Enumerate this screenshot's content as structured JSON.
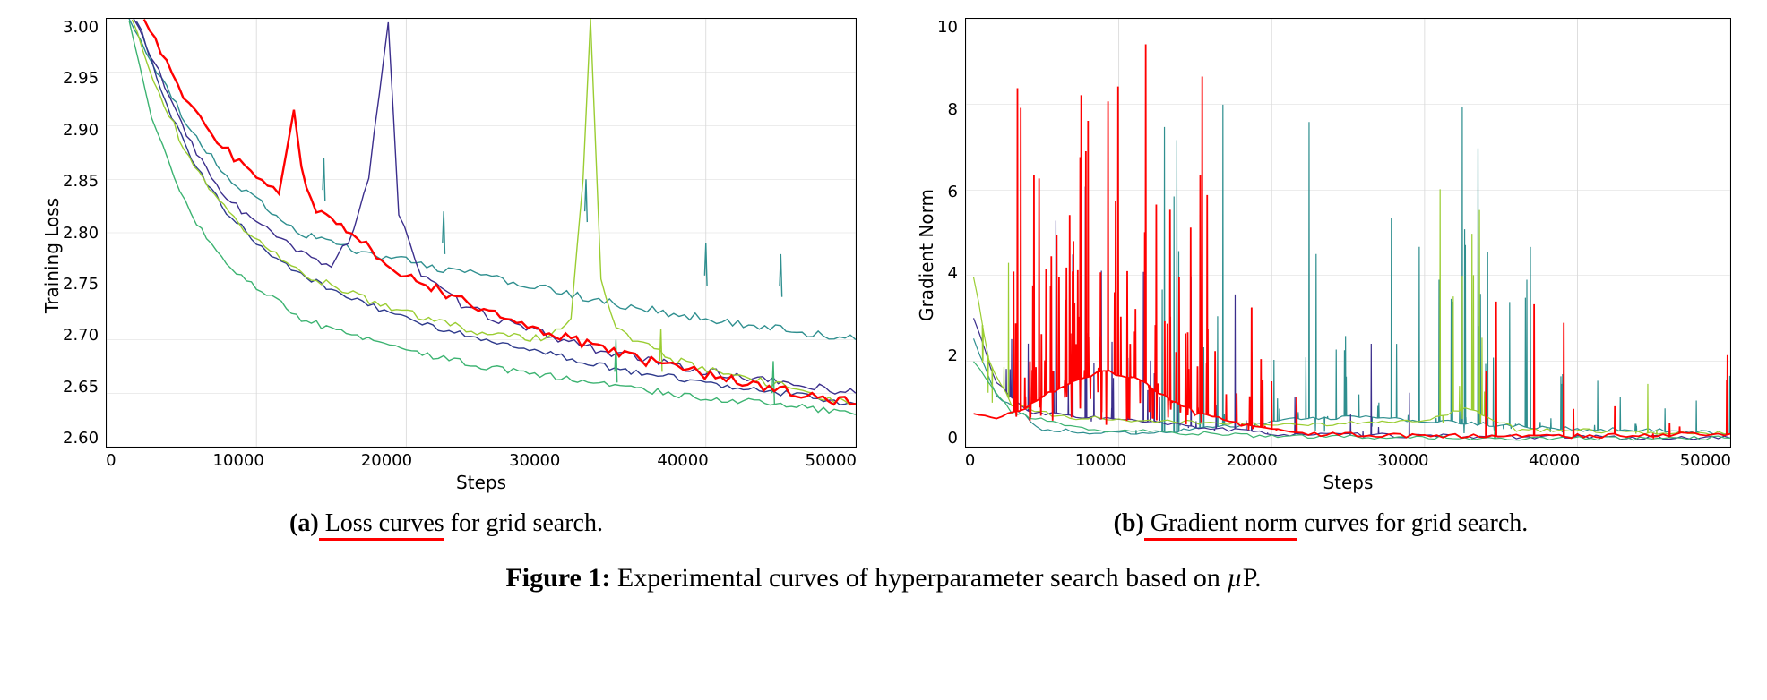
{
  "colors": {
    "background": "#ffffff",
    "text": "#000000",
    "grid": "#d9d9d9",
    "underline": "#ff0000",
    "axis": "#000000"
  },
  "figure_caption": {
    "tag": "Figure 1:",
    "text_before_mu": " Experimental curves of hyperparameter search based on ",
    "mu": "µ",
    "text_after_mu": "P."
  },
  "panel_a": {
    "subcaption_tag": "(a)",
    "subcaption_underlined": " Loss curves",
    "subcaption_rest": " for grid search.",
    "ylabel": "Training Loss",
    "xlabel": "Steps",
    "xlim": [
      0,
      50000
    ],
    "ylim": [
      2.6,
      3.0
    ],
    "xticks": [
      0,
      10000,
      20000,
      30000,
      40000,
      50000
    ],
    "xtick_labels": [
      "0",
      "10000",
      "20000",
      "30000",
      "40000",
      "50000"
    ],
    "yticks": [
      2.6,
      2.65,
      2.7,
      2.75,
      2.8,
      2.85,
      2.9,
      2.95,
      3.0
    ],
    "ytick_labels": [
      "2.60",
      "2.65",
      "2.70",
      "2.75",
      "2.80",
      "2.85",
      "2.90",
      "2.95",
      "3.00"
    ],
    "tick_fontsize": 18,
    "label_fontsize": 20,
    "line_width": 1.4,
    "red_line_width": 2.4,
    "grid": true,
    "series": [
      {
        "color": "#2f8f8f",
        "noise": 0.004,
        "points": [
          [
            1500,
            3.0
          ],
          [
            3000,
            2.96
          ],
          [
            5000,
            2.91
          ],
          [
            7000,
            2.87
          ],
          [
            9000,
            2.84
          ],
          [
            11000,
            2.82
          ],
          [
            13000,
            2.8
          ],
          [
            15000,
            2.79
          ],
          [
            18000,
            2.78
          ],
          [
            21000,
            2.77
          ],
          [
            25000,
            2.76
          ],
          [
            30000,
            2.745
          ],
          [
            35000,
            2.73
          ],
          [
            40000,
            2.72
          ],
          [
            45000,
            2.71
          ],
          [
            50000,
            2.7
          ]
        ],
        "spikes": [
          [
            14500,
            2.87
          ],
          [
            22500,
            2.82
          ],
          [
            32000,
            2.85
          ],
          [
            40000,
            2.79
          ],
          [
            45000,
            2.78
          ]
        ]
      },
      {
        "color": "#3b2e8c",
        "noise": 0.004,
        "points": [
          [
            1800,
            3.0
          ],
          [
            3500,
            2.95
          ],
          [
            5000,
            2.9
          ],
          [
            7000,
            2.85
          ],
          [
            9000,
            2.82
          ],
          [
            11000,
            2.8
          ],
          [
            13000,
            2.78
          ],
          [
            15000,
            2.77
          ],
          [
            16500,
            2.8
          ],
          [
            17500,
            2.85
          ],
          [
            18200,
            2.93
          ],
          [
            18800,
            3.0
          ],
          [
            19500,
            2.82
          ],
          [
            21000,
            2.76
          ],
          [
            24000,
            2.73
          ],
          [
            28000,
            2.71
          ],
          [
            33000,
            2.69
          ],
          [
            40000,
            2.67
          ],
          [
            50000,
            2.65
          ]
        ],
        "spikes": []
      },
      {
        "color": "#2e3a8c",
        "noise": 0.003,
        "points": [
          [
            2000,
            3.0
          ],
          [
            4000,
            2.92
          ],
          [
            6000,
            2.86
          ],
          [
            8000,
            2.82
          ],
          [
            10000,
            2.79
          ],
          [
            13000,
            2.76
          ],
          [
            16000,
            2.74
          ],
          [
            20000,
            2.72
          ],
          [
            25000,
            2.7
          ],
          [
            30000,
            2.685
          ],
          [
            35000,
            2.67
          ],
          [
            40000,
            2.66
          ],
          [
            45000,
            2.65
          ],
          [
            50000,
            2.64
          ]
        ],
        "spikes": []
      },
      {
        "color": "#9acd32",
        "noise": 0.004,
        "points": [
          [
            1700,
            3.0
          ],
          [
            3500,
            2.93
          ],
          [
            5500,
            2.87
          ],
          [
            7500,
            2.83
          ],
          [
            9500,
            2.8
          ],
          [
            12000,
            2.77
          ],
          [
            15000,
            2.75
          ],
          [
            19000,
            2.73
          ],
          [
            24000,
            2.71
          ],
          [
            29000,
            2.7
          ],
          [
            31000,
            2.72
          ],
          [
            31800,
            2.85
          ],
          [
            32300,
            3.0
          ],
          [
            33000,
            2.76
          ],
          [
            34000,
            2.71
          ],
          [
            38000,
            2.68
          ],
          [
            44000,
            2.66
          ],
          [
            50000,
            2.64
          ]
        ],
        "spikes": [
          [
            37000,
            2.71
          ]
        ]
      },
      {
        "color": "#3cb371",
        "noise": 0.003,
        "points": [
          [
            1500,
            3.0
          ],
          [
            3000,
            2.91
          ],
          [
            4500,
            2.85
          ],
          [
            6000,
            2.81
          ],
          [
            8000,
            2.77
          ],
          [
            10000,
            2.75
          ],
          [
            13000,
            2.72
          ],
          [
            16000,
            2.705
          ],
          [
            20000,
            2.69
          ],
          [
            25000,
            2.675
          ],
          [
            30000,
            2.665
          ],
          [
            35000,
            2.655
          ],
          [
            40000,
            2.645
          ],
          [
            45000,
            2.64
          ],
          [
            50000,
            2.63
          ]
        ],
        "spikes": [
          [
            34000,
            2.7
          ],
          [
            44500,
            2.68
          ]
        ]
      },
      {
        "color": "#ff0000",
        "noise": 0.005,
        "bold": true,
        "points": [
          [
            2500,
            3.0
          ],
          [
            4000,
            2.96
          ],
          [
            5500,
            2.92
          ],
          [
            7000,
            2.89
          ],
          [
            8500,
            2.87
          ],
          [
            10000,
            2.85
          ],
          [
            11500,
            2.84
          ],
          [
            12000,
            2.88
          ],
          [
            12500,
            2.91
          ],
          [
            13000,
            2.86
          ],
          [
            14000,
            2.82
          ],
          [
            16000,
            2.8
          ],
          [
            18000,
            2.78
          ],
          [
            20000,
            2.76
          ],
          [
            23000,
            2.74
          ],
          [
            27000,
            2.72
          ],
          [
            31000,
            2.7
          ],
          [
            36000,
            2.68
          ],
          [
            41000,
            2.665
          ],
          [
            46000,
            2.65
          ],
          [
            50000,
            2.64
          ]
        ],
        "spikes": []
      }
    ]
  },
  "panel_b": {
    "subcaption_tag": "(b)",
    "subcaption_underlined": " Gradient norm",
    "subcaption_rest": " curves for grid search.",
    "ylabel": "Gradient Norm",
    "xlabel": "Steps",
    "xlim": [
      0,
      50000
    ],
    "ylim": [
      0,
      10
    ],
    "xticks": [
      0,
      10000,
      20000,
      30000,
      40000,
      50000
    ],
    "xtick_labels": [
      "0",
      "10000",
      "20000",
      "30000",
      "40000",
      "50000"
    ],
    "yticks": [
      0,
      2,
      4,
      6,
      8,
      10
    ],
    "ytick_labels": [
      "0",
      "2",
      "4",
      "6",
      "8",
      "10"
    ],
    "tick_fontsize": 18,
    "label_fontsize": 20,
    "line_width": 1.2,
    "red_line_width": 1.8,
    "grid": true,
    "series": [
      {
        "color": "#2f8f8f",
        "baseline": [
          [
            500,
            2.5
          ],
          [
            2000,
            1.2
          ],
          [
            5000,
            0.4
          ],
          [
            10000,
            0.3
          ],
          [
            15000,
            0.4
          ],
          [
            20000,
            0.6
          ],
          [
            25000,
            0.7
          ],
          [
            30000,
            0.6
          ],
          [
            35000,
            0.5
          ],
          [
            40000,
            0.4
          ],
          [
            45000,
            0.4
          ],
          [
            50000,
            0.3
          ]
        ],
        "spike_regions": [
          {
            "from": 10000,
            "to": 38000,
            "density": 65,
            "min": 0.3,
            "max": 10
          },
          {
            "from": 38000,
            "to": 50000,
            "density": 15,
            "min": 0.3,
            "max": 2.5
          }
        ]
      },
      {
        "color": "#3b2e8c",
        "baseline": [
          [
            500,
            3.0
          ],
          [
            2000,
            1.5
          ],
          [
            4000,
            0.8
          ],
          [
            8000,
            0.7
          ],
          [
            14000,
            0.5
          ],
          [
            20000,
            0.3
          ],
          [
            30000,
            0.25
          ],
          [
            50000,
            0.2
          ]
        ],
        "spike_regions": [
          {
            "from": 1000,
            "to": 20000,
            "density": 35,
            "min": 0.3,
            "max": 10
          },
          {
            "from": 20000,
            "to": 30000,
            "density": 8,
            "min": 0.2,
            "max": 3
          }
        ]
      },
      {
        "color": "#9acd32",
        "baseline": [
          [
            500,
            4.0
          ],
          [
            1500,
            2.0
          ],
          [
            3000,
            1.0
          ],
          [
            6000,
            0.7
          ],
          [
            12000,
            0.6
          ],
          [
            20000,
            0.5
          ],
          [
            30000,
            0.6
          ],
          [
            33000,
            0.9
          ],
          [
            36000,
            0.4
          ],
          [
            50000,
            0.3
          ]
        ],
        "spike_regions": [
          {
            "from": 500,
            "to": 3000,
            "density": 6,
            "min": 1.0,
            "max": 4.5
          },
          {
            "from": 31000,
            "to": 34000,
            "density": 12,
            "min": 0.5,
            "max": 10
          },
          {
            "from": 43000,
            "to": 46000,
            "density": 3,
            "min": 0.3,
            "max": 2.2
          }
        ]
      },
      {
        "color": "#3cb371",
        "baseline": [
          [
            500,
            2.0
          ],
          [
            3000,
            0.8
          ],
          [
            8000,
            0.4
          ],
          [
            20000,
            0.25
          ],
          [
            35000,
            0.2
          ],
          [
            50000,
            0.2
          ]
        ],
        "spike_regions": [
          {
            "from": 33000,
            "to": 36000,
            "density": 3,
            "min": 0.2,
            "max": 0.9
          }
        ]
      },
      {
        "color": "#ff0000",
        "bold": true,
        "baseline": [
          [
            500,
            0.8
          ],
          [
            2000,
            0.7
          ],
          [
            3500,
            0.8
          ],
          [
            5000,
            1.2
          ],
          [
            7000,
            1.5
          ],
          [
            9000,
            1.8
          ],
          [
            11000,
            1.6
          ],
          [
            13000,
            1.2
          ],
          [
            15000,
            0.8
          ],
          [
            18000,
            0.5
          ],
          [
            22000,
            0.3
          ],
          [
            30000,
            0.25
          ],
          [
            40000,
            0.25
          ],
          [
            50000,
            0.3
          ]
        ],
        "spike_regions": [
          {
            "from": 3000,
            "to": 16000,
            "density": 120,
            "min": 0.5,
            "max": 10
          },
          {
            "from": 16000,
            "to": 22000,
            "density": 15,
            "min": 0.3,
            "max": 4
          },
          {
            "from": 34000,
            "to": 40000,
            "density": 6,
            "min": 0.2,
            "max": 5
          },
          {
            "from": 42000,
            "to": 48000,
            "density": 5,
            "min": 0.2,
            "max": 2
          },
          {
            "from": 49500,
            "to": 50000,
            "density": 2,
            "min": 0.3,
            "max": 7
          }
        ]
      }
    ]
  }
}
